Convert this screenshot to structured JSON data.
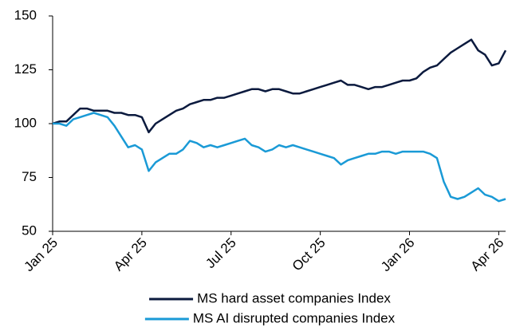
{
  "chart_data": {
    "type": "line",
    "categories": [
      "Jan 25",
      null,
      null,
      null,
      null,
      null,
      null,
      null,
      null,
      null,
      null,
      null,
      null,
      "Apr 25",
      null,
      null,
      null,
      null,
      null,
      null,
      null,
      null,
      null,
      null,
      null,
      null,
      "Jul 25",
      null,
      null,
      null,
      null,
      null,
      null,
      null,
      null,
      null,
      null,
      null,
      null,
      "Oct 25",
      null,
      null,
      null,
      null,
      null,
      null,
      null,
      null,
      null,
      null,
      null,
      null,
      "Jan 26",
      null,
      null,
      null,
      null,
      null,
      null,
      null,
      null,
      null,
      null,
      null,
      null,
      "Apr 26",
      null
    ],
    "series": [
      {
        "name": "MS hard asset companies Index",
        "color": "#0b1a3e",
        "values": [
          100,
          101,
          101,
          104,
          107,
          107,
          106,
          106,
          106,
          105,
          105,
          104,
          104,
          103,
          96,
          100,
          102,
          104,
          106,
          107,
          109,
          110,
          111,
          111,
          112,
          112,
          113,
          114,
          115,
          116,
          116,
          115,
          116,
          116,
          115,
          114,
          114,
          115,
          116,
          117,
          118,
          119,
          120,
          118,
          118,
          117,
          116,
          117,
          117,
          118,
          119,
          120,
          120,
          121,
          124,
          126,
          127,
          130,
          133,
          135,
          137,
          139,
          134,
          132,
          127,
          128,
          134
        ]
      },
      {
        "name": "MS AI disrupted companies Index",
        "color": "#1a9ad6",
        "values": [
          100,
          100,
          99,
          102,
          103,
          104,
          105,
          104,
          103,
          99,
          94,
          89,
          90,
          88,
          78,
          82,
          84,
          86,
          86,
          88,
          92,
          91,
          89,
          90,
          89,
          90,
          91,
          92,
          93,
          90,
          89,
          87,
          88,
          90,
          89,
          90,
          89,
          88,
          87,
          86,
          85,
          84,
          81,
          83,
          84,
          85,
          86,
          86,
          87,
          87,
          86,
          87,
          87,
          87,
          87,
          86,
          84,
          73,
          66,
          65,
          66,
          68,
          70,
          67,
          66,
          64,
          65
        ]
      }
    ],
    "ylim": [
      50,
      150
    ],
    "yticks": [
      50,
      75,
      100,
      125,
      150
    ],
    "grid": false,
    "legend": "bottom"
  }
}
